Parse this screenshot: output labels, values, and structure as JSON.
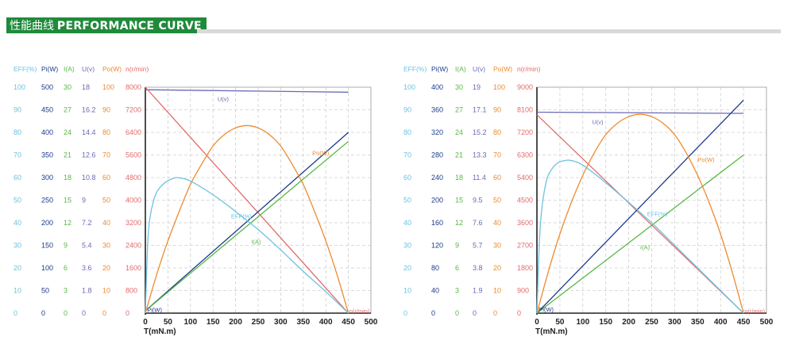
{
  "header": {
    "title_cn": "性能曲线",
    "title_en": "PERFORMANCE CURVE"
  },
  "colors": {
    "eff": "#6cc2e0",
    "pi": "#1d3a8c",
    "i": "#58b845",
    "u": "#6a6ab8",
    "po": "#ef8a2e",
    "n": "#e46a6a",
    "header_green": "#1f8a3a",
    "grid": "#cfcfcf"
  },
  "chart_data": [
    {
      "type": "line",
      "xlabel": "T(mN.m)",
      "x_ticks": [
        "0",
        "50",
        "100",
        "150",
        "200",
        "250",
        "300",
        "350",
        "400",
        "450",
        "500"
      ],
      "xlim": [
        0,
        500
      ],
      "axis_headers": [
        {
          "key": "eff",
          "label": "EFF(%)"
        },
        {
          "key": "pi",
          "label": "Pi(W)"
        },
        {
          "key": "i",
          "label": "I(A)"
        },
        {
          "key": "u",
          "label": "U(v)"
        },
        {
          "key": "po",
          "label": "Po(W)"
        },
        {
          "key": "n",
          "label": "n(r/min)"
        }
      ],
      "y_scales": [
        {
          "key": "eff",
          "ticks": [
            "100",
            "90",
            "80",
            "70",
            "60",
            "50",
            "40",
            "30",
            "20",
            "10",
            "0"
          ]
        },
        {
          "key": "pi",
          "ticks": [
            "500",
            "450",
            "400",
            "350",
            "300",
            "250",
            "200",
            "150",
            "100",
            "50",
            "0"
          ]
        },
        {
          "key": "i",
          "ticks": [
            "30",
            "27",
            "24",
            "21",
            "18",
            "15",
            "12",
            "9",
            "6",
            "3",
            "0"
          ]
        },
        {
          "key": "u",
          "ticks": [
            "18",
            "16.2",
            "14.4",
            "12.6",
            "10.8",
            "9",
            "7.2",
            "5.4",
            "3.6",
            "1.8",
            "0"
          ]
        },
        {
          "key": "po",
          "ticks": [
            "100",
            "90",
            "80",
            "70",
            "60",
            "50",
            "40",
            "30",
            "20",
            "10",
            "0"
          ]
        },
        {
          "key": "n",
          "ticks": [
            "8000",
            "7200",
            "6400",
            "5600",
            "4800",
            "4000",
            "3200",
            "2400",
            "1600",
            "800",
            "0"
          ]
        }
      ],
      "series": [
        {
          "key": "u",
          "name": "U(v)",
          "x": [
            0,
            450
          ],
          "y": [
            17.8,
            17.6
          ]
        },
        {
          "key": "n",
          "name": "n(r/min)",
          "x": [
            0,
            450
          ],
          "y": [
            8000,
            0
          ]
        },
        {
          "key": "pi",
          "name": "Pi(W)",
          "x": [
            0,
            450
          ],
          "y": [
            5,
            400
          ]
        },
        {
          "key": "i",
          "name": "I(A)",
          "x": [
            0,
            450
          ],
          "y": [
            0.3,
            22.8
          ]
        },
        {
          "key": "po",
          "name": "Po(W)",
          "x": [
            0,
            25,
            50,
            75,
            100,
            125,
            150,
            175,
            200,
            225,
            250,
            275,
            300,
            325,
            350,
            375,
            400,
            425,
            450
          ],
          "y": [
            0,
            17,
            32,
            45,
            57,
            66,
            74,
            79,
            82,
            83,
            82,
            79,
            74,
            66,
            57,
            45,
            32,
            17,
            0
          ]
        },
        {
          "key": "eff",
          "name": "EFF(%)",
          "x": [
            0,
            5,
            10,
            20,
            30,
            45,
            60,
            70,
            85,
            100,
            130,
            160,
            200,
            250,
            300,
            350,
            400,
            450
          ],
          "y": [
            0,
            30,
            42,
            51,
            55,
            58,
            59.5,
            60,
            59.5,
            58.5,
            55,
            51,
            45,
            37,
            28,
            18.5,
            9.5,
            0
          ]
        }
      ],
      "curve_labels": [
        {
          "key": "u",
          "text": "U(v)",
          "x": 160,
          "y": 16.9
        },
        {
          "key": "po",
          "text": "Po(W)",
          "x": 370,
          "y": 70
        },
        {
          "key": "eff",
          "text": "EFF(%)",
          "x": 190,
          "y": 42
        },
        {
          "key": "i",
          "text": "I(A)",
          "x": 235,
          "y": 9.2
        },
        {
          "key": "pi",
          "text": "Pi(W)",
          "x": 4,
          "y": 3
        },
        {
          "key": "n",
          "text": "n(r/min)",
          "x": 452,
          "y": 0.3
        }
      ]
    },
    {
      "type": "line",
      "xlabel": "T(mN.m)",
      "x_ticks": [
        "0",
        "50",
        "100",
        "150",
        "200",
        "250",
        "300",
        "350",
        "400",
        "450",
        "500"
      ],
      "xlim": [
        0,
        500
      ],
      "axis_headers": [
        {
          "key": "eff",
          "label": "EFF(%)"
        },
        {
          "key": "pi",
          "label": "Pi(W)"
        },
        {
          "key": "i",
          "label": "I(A)"
        },
        {
          "key": "u",
          "label": "U(v)"
        },
        {
          "key": "po",
          "label": "Po(W)"
        },
        {
          "key": "n",
          "label": "n(r/min)"
        }
      ],
      "y_scales": [
        {
          "key": "eff",
          "ticks": [
            "100",
            "90",
            "80",
            "70",
            "60",
            "50",
            "40",
            "30",
            "20",
            "10",
            "0"
          ]
        },
        {
          "key": "pi",
          "ticks": [
            "400",
            "360",
            "320",
            "280",
            "240",
            "200",
            "160",
            "120",
            "80",
            "40",
            "0"
          ]
        },
        {
          "key": "i",
          "ticks": [
            "30",
            "27",
            "24",
            "21",
            "18",
            "15",
            "12",
            "9",
            "6",
            "3",
            "0"
          ]
        },
        {
          "key": "u",
          "ticks": [
            "19",
            "17.1",
            "15.2",
            "13.3",
            "11.4",
            "9.5",
            "7.6",
            "5.7",
            "3.8",
            "1.9",
            "0"
          ]
        },
        {
          "key": "po",
          "ticks": [
            "100",
            "90",
            "80",
            "70",
            "60",
            "50",
            "40",
            "30",
            "20",
            "10",
            "0"
          ]
        },
        {
          "key": "n",
          "ticks": [
            "9000",
            "8100",
            "7200",
            "6300",
            "5400",
            "4500",
            "3600",
            "2700",
            "1800",
            "900",
            "0"
          ]
        }
      ],
      "series": [
        {
          "key": "u",
          "name": "U(v)",
          "x": [
            0,
            450
          ],
          "y": [
            16.9,
            16.8
          ]
        },
        {
          "key": "n",
          "name": "n(r/min)",
          "x": [
            0,
            450
          ],
          "y": [
            7900,
            0
          ]
        },
        {
          "key": "pi",
          "name": "Pi(W)",
          "x": [
            0,
            450
          ],
          "y": [
            0,
            377
          ]
        },
        {
          "key": "i",
          "name": "I(A)",
          "x": [
            0,
            450
          ],
          "y": [
            0,
            21
          ]
        },
        {
          "key": "po",
          "name": "Po(W)",
          "x": [
            0,
            25,
            50,
            75,
            100,
            125,
            150,
            175,
            200,
            225,
            250,
            275,
            300,
            325,
            350,
            375,
            400,
            425,
            450
          ],
          "y": [
            0,
            18.5,
            35,
            49,
            61,
            71,
            79,
            84,
            87,
            88,
            87,
            84,
            79,
            71,
            61,
            49,
            35,
            18.5,
            0
          ]
        },
        {
          "key": "eff",
          "name": "EFF(%)",
          "x": [
            0,
            5,
            10,
            20,
            30,
            45,
            60,
            70,
            85,
            100,
            130,
            160,
            200,
            250,
            300,
            350,
            400,
            450
          ],
          "y": [
            0,
            30,
            45,
            58,
            63,
            66.5,
            67.5,
            67.7,
            67,
            65.5,
            61,
            56,
            49,
            40,
            30,
            20,
            10,
            0
          ]
        }
      ],
      "curve_labels": [
        {
          "key": "u",
          "text": "U(v)",
          "x": 120,
          "y": 15.9
        },
        {
          "key": "po",
          "text": "Po(W)",
          "x": 350,
          "y": 67
        },
        {
          "key": "eff",
          "text": "EFF(%)",
          "x": 240,
          "y": 43
        },
        {
          "key": "i",
          "text": "I(A)",
          "x": 225,
          "y": 8.5
        },
        {
          "key": "pi",
          "text": "Pi(W)",
          "x": 4,
          "y": 3
        },
        {
          "key": "n",
          "text": "n(r/min)",
          "x": 452,
          "y": 0.3
        }
      ]
    }
  ]
}
